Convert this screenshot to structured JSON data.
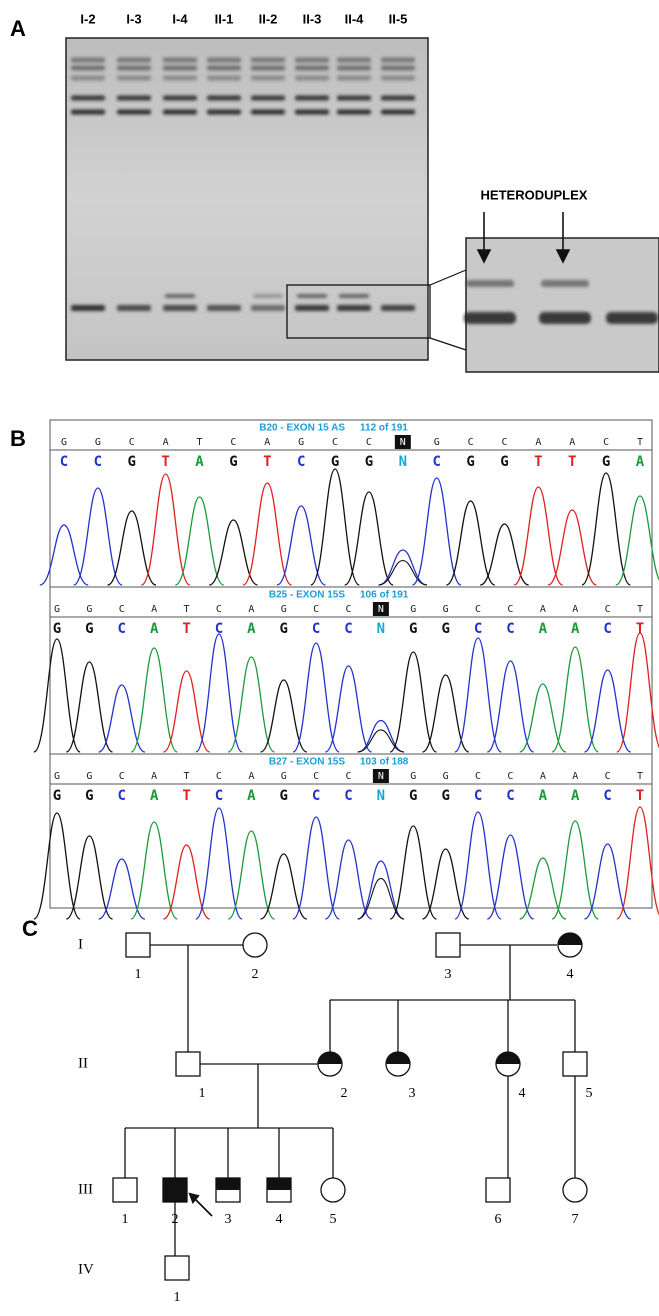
{
  "panel_a": {
    "label": "A",
    "lanes": [
      "I-2",
      "I-3",
      "I-4",
      "II-1",
      "II-2",
      "II-3",
      "II-4",
      "II-5"
    ],
    "inset_label": "HETERODUPLEX"
  },
  "panel_b": {
    "label": "B",
    "traces": [
      {
        "sample": "B20 - EXON 15 AS",
        "position": "112 of 191",
        "bases": [
          "G",
          "G",
          "C",
          "A",
          "T",
          "C",
          "A",
          "G",
          "C",
          "C",
          "N",
          "G",
          "C",
          "C",
          "A",
          "A",
          "C",
          "T"
        ],
        "calls": [
          "C",
          "C",
          "G",
          "T",
          "A",
          "G",
          "T",
          "C",
          "G",
          "G",
          "N",
          "C",
          "G",
          "G",
          "T",
          "T",
          "G",
          "A"
        ]
      },
      {
        "sample": "B25 - EXON 15S",
        "position": "106 of 191",
        "bases": [
          "G",
          "G",
          "C",
          "A",
          "T",
          "C",
          "A",
          "G",
          "C",
          "C",
          "N",
          "G",
          "G",
          "C",
          "C",
          "A",
          "A",
          "C",
          "T"
        ],
        "calls": [
          "G",
          "G",
          "C",
          "A",
          "T",
          "C",
          "A",
          "G",
          "C",
          "C",
          "N",
          "G",
          "G",
          "C",
          "C",
          "A",
          "A",
          "C",
          "T"
        ]
      },
      {
        "sample": "B27 - EXON 15S",
        "position": "103 of 188",
        "bases": [
          "G",
          "G",
          "C",
          "A",
          "T",
          "C",
          "A",
          "G",
          "C",
          "C",
          "N",
          "G",
          "G",
          "C",
          "C",
          "A",
          "A",
          "C",
          "T"
        ],
        "calls": [
          "G",
          "G",
          "C",
          "A",
          "T",
          "C",
          "A",
          "G",
          "C",
          "C",
          "N",
          "G",
          "G",
          "C",
          "C",
          "A",
          "A",
          "C",
          "T"
        ]
      }
    ]
  },
  "panel_c": {
    "label": "C",
    "generations": [
      "I",
      "II",
      "III",
      "IV"
    ],
    "individuals": [
      1,
      2,
      3,
      4,
      1,
      2,
      3,
      4,
      5,
      1,
      2,
      3,
      4,
      5,
      6,
      7,
      1
    ]
  }
}
